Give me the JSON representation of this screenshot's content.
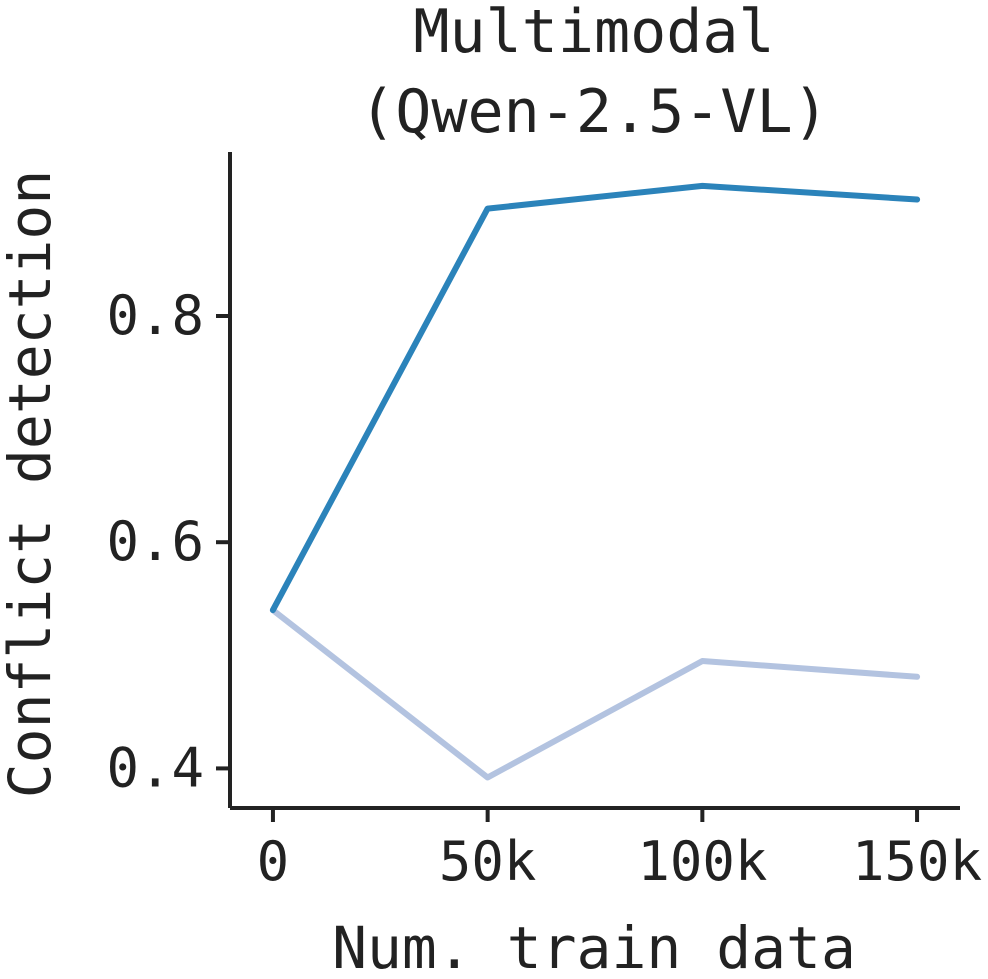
{
  "chart_data": {
    "type": "line",
    "title_lines": [
      "Multimodal",
      "(Qwen-2.5-VL)"
    ],
    "xlabel": "Num. train data",
    "ylabel": "Conflict detection",
    "x": [
      0,
      50000,
      100000,
      150000
    ],
    "x_tick_values": [
      0,
      50000,
      100000,
      150000
    ],
    "x_tick_labels": [
      "0",
      "50k",
      "100k",
      "150k"
    ],
    "y_tick_values": [
      0.4,
      0.6,
      0.8
    ],
    "y_tick_labels": [
      "0.4",
      "0.6",
      "0.8"
    ],
    "xlim": [
      -10000,
      160000
    ],
    "ylim": [
      0.365,
      0.945
    ],
    "grid": false,
    "series": [
      {
        "color": "#2b83ba",
        "values": [
          0.54,
          0.895,
          0.915,
          0.903
        ]
      },
      {
        "color": "#b3c3e0",
        "values": [
          0.54,
          0.392,
          0.495,
          0.481
        ]
      }
    ]
  }
}
